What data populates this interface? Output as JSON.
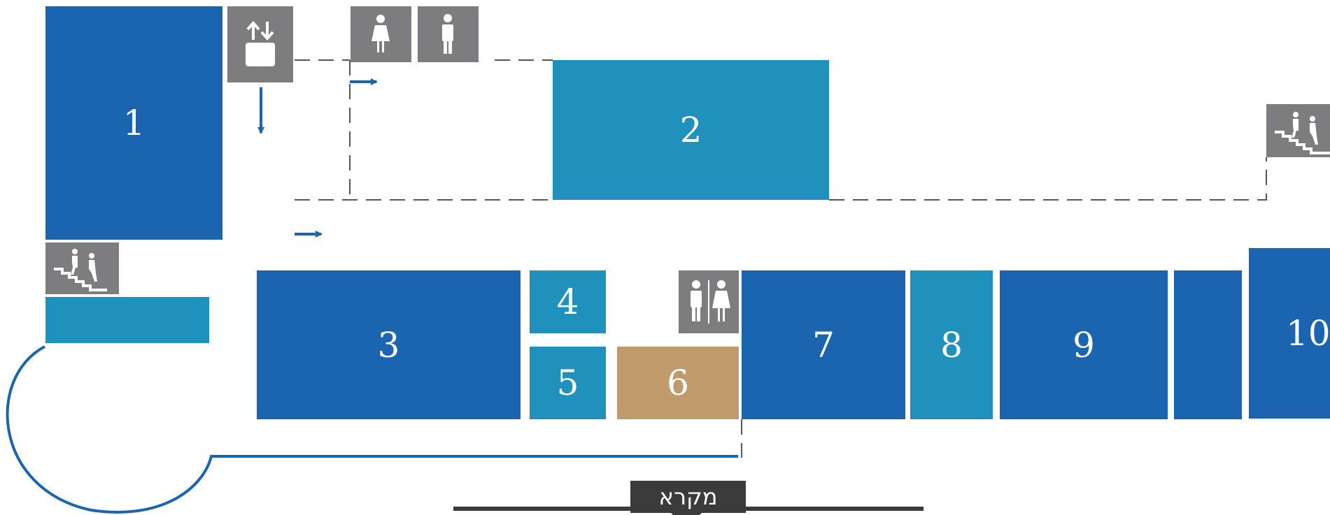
{
  "colors": {
    "dark_blue": "#1a64b0",
    "light_blue": "#2090bd",
    "tan": "#c19a6b",
    "icon_gray": "#7d7d7f",
    "legend_dark": "#3b3b3b"
  },
  "rooms": [
    {
      "label": "1",
      "color": "dark_blue"
    },
    {
      "label": "2",
      "color": "light_blue"
    },
    {
      "label": "3",
      "color": "dark_blue"
    },
    {
      "label": "4",
      "color": "light_blue"
    },
    {
      "label": "5",
      "color": "light_blue"
    },
    {
      "label": "6",
      "color": "tan"
    },
    {
      "label": "7",
      "color": "dark_blue"
    },
    {
      "label": "8",
      "color": "light_blue"
    },
    {
      "label": "9",
      "color": "dark_blue"
    },
    {
      "label": "10",
      "color": "dark_blue"
    }
  ],
  "icons": [
    "elevator-icon",
    "womens-restroom-icon",
    "mens-restroom-icon",
    "stairs-icon",
    "stairs-icon",
    "restrooms-icon"
  ],
  "legend": {
    "label": "מקרא"
  }
}
